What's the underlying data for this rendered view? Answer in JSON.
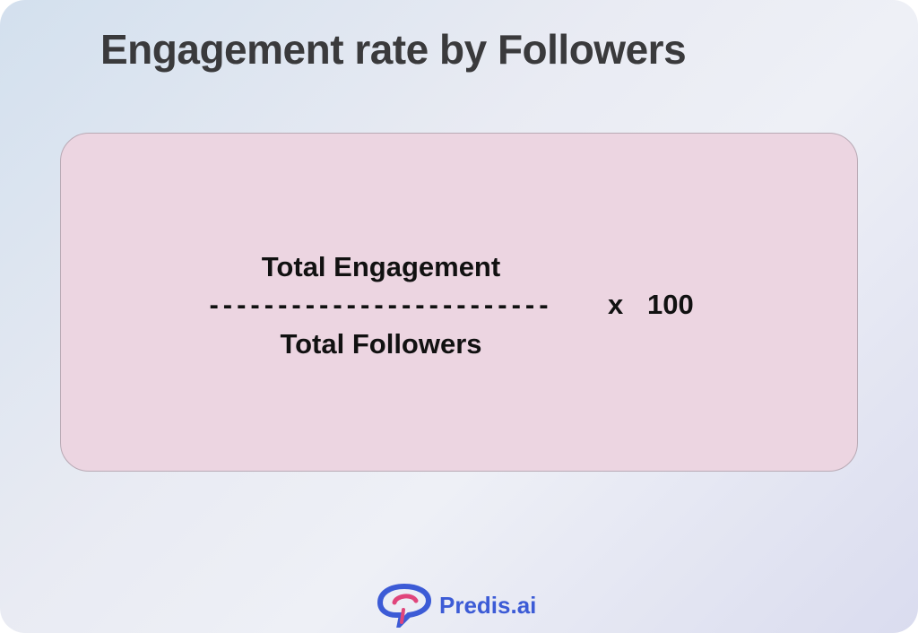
{
  "title": "Engagement rate by Followers",
  "formula": {
    "numerator": "Total Engagement",
    "separator": "-------------------------",
    "denominator": "Total Followers",
    "operator": "x",
    "multiplier": "100"
  },
  "brand": "Predis.ai"
}
